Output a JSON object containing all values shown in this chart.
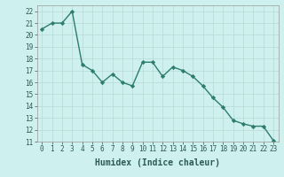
{
  "x": [
    0,
    1,
    2,
    3,
    4,
    5,
    6,
    7,
    8,
    9,
    10,
    11,
    12,
    13,
    14,
    15,
    16,
    17,
    18,
    19,
    20,
    21,
    22,
    23
  ],
  "y": [
    20.5,
    21.0,
    21.0,
    22.0,
    17.5,
    17.0,
    16.0,
    16.7,
    16.0,
    15.7,
    17.7,
    17.7,
    16.5,
    17.3,
    17.0,
    16.5,
    15.7,
    14.7,
    13.9,
    12.8,
    12.5,
    12.3,
    12.3,
    11.1
  ],
  "line_color": "#2d7d6e",
  "marker": "D",
  "marker_size": 2.2,
  "bg_color": "#cef0ee",
  "grid_color": "#b8d8d4",
  "xlabel": "Humidex (Indice chaleur)",
  "ylim": [
    11,
    22.5
  ],
  "xlim": [
    -0.5,
    23.5
  ],
  "yticks": [
    11,
    12,
    13,
    14,
    15,
    16,
    17,
    18,
    19,
    20,
    21,
    22
  ],
  "xticks": [
    0,
    1,
    2,
    3,
    4,
    5,
    6,
    7,
    8,
    9,
    10,
    11,
    12,
    13,
    14,
    15,
    16,
    17,
    18,
    19,
    20,
    21,
    22,
    23
  ],
  "xlabel_fontsize": 7,
  "tick_fontsize": 5.5,
  "line_width": 1.0
}
